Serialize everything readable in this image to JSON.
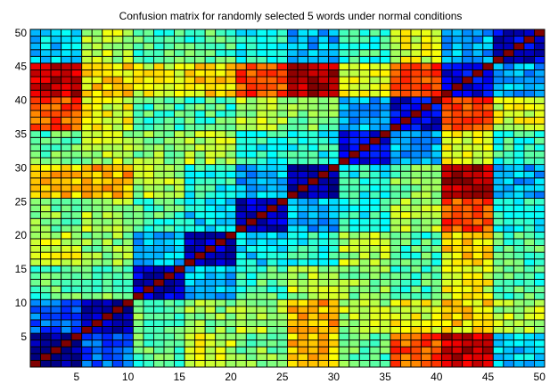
{
  "chart_data": {
    "type": "heatmap",
    "title": "Confusion matrix for randomly selected 5 words under normal conditions",
    "xlabel": "",
    "ylabel": "",
    "size": 50,
    "xlim": [
      1,
      50
    ],
    "ylim": [
      1,
      50
    ],
    "xticks": [
      5,
      10,
      15,
      20,
      25,
      30,
      35,
      40,
      45,
      50
    ],
    "yticks": [
      5,
      10,
      15,
      20,
      25,
      30,
      35,
      40,
      45,
      50
    ],
    "colormap": "jet",
    "value_range": [
      0,
      1
    ],
    "grid": true,
    "groups": [
      {
        "rows": [
          1,
          5
        ]
      },
      {
        "rows": [
          6,
          10
        ]
      },
      {
        "rows": [
          11,
          15
        ]
      },
      {
        "rows": [
          16,
          20
        ]
      },
      {
        "rows": [
          21,
          25
        ]
      },
      {
        "rows": [
          26,
          30
        ]
      },
      {
        "rows": [
          31,
          35
        ]
      },
      {
        "rows": [
          36,
          40
        ]
      },
      {
        "rows": [
          41,
          45
        ]
      },
      {
        "rows": [
          46,
          50
        ]
      }
    ],
    "block_values": [
      [
        0.02,
        0.22,
        0.46,
        0.58,
        0.5,
        0.68,
        0.47,
        0.79,
        0.93,
        0.34
      ],
      [
        0.22,
        0.04,
        0.48,
        0.52,
        0.55,
        0.7,
        0.55,
        0.6,
        0.65,
        0.55
      ],
      [
        0.46,
        0.48,
        0.08,
        0.3,
        0.45,
        0.55,
        0.52,
        0.45,
        0.6,
        0.45
      ],
      [
        0.58,
        0.52,
        0.3,
        0.08,
        0.35,
        0.4,
        0.55,
        0.45,
        0.65,
        0.45
      ],
      [
        0.5,
        0.55,
        0.45,
        0.35,
        0.06,
        0.3,
        0.4,
        0.55,
        0.8,
        0.4
      ],
      [
        0.68,
        0.7,
        0.55,
        0.4,
        0.3,
        0.06,
        0.4,
        0.5,
        0.95,
        0.3
      ],
      [
        0.47,
        0.55,
        0.52,
        0.55,
        0.4,
        0.4,
        0.1,
        0.3,
        0.6,
        0.42
      ],
      [
        0.79,
        0.6,
        0.45,
        0.45,
        0.55,
        0.5,
        0.3,
        0.1,
        0.8,
        0.6
      ],
      [
        0.93,
        0.65,
        0.6,
        0.65,
        0.8,
        0.95,
        0.6,
        0.8,
        0.1,
        0.3
      ],
      [
        0.34,
        0.55,
        0.45,
        0.45,
        0.4,
        0.3,
        0.42,
        0.6,
        0.3,
        0.08
      ]
    ],
    "diagonal_value": 1.0
  }
}
